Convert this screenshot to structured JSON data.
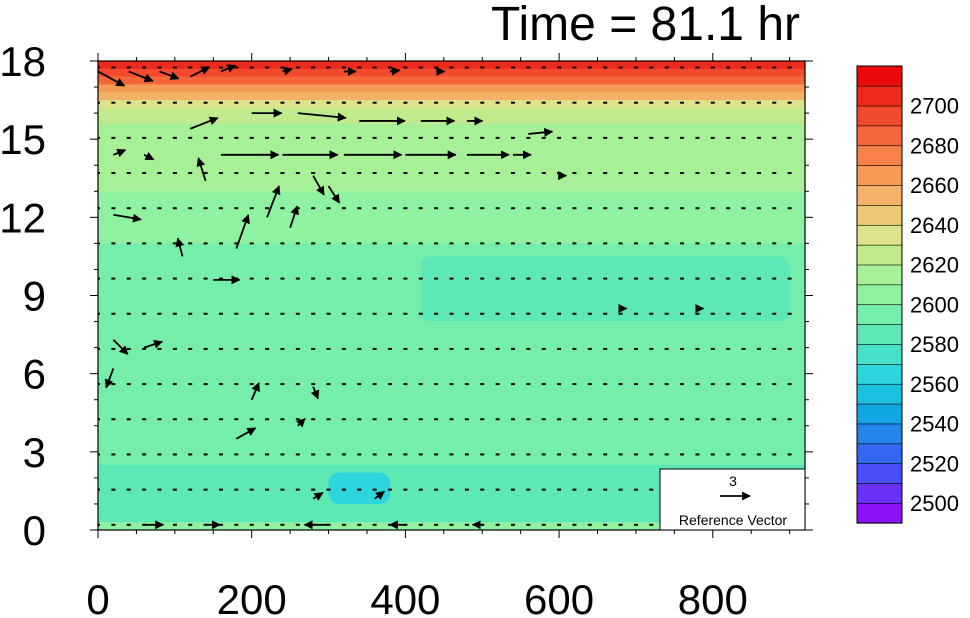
{
  "chart_data": {
    "type": "heatmap",
    "title": "Time = 81.1 hr",
    "xlabel": "",
    "ylabel": "",
    "xlim": [
      0,
      920
    ],
    "ylim": [
      0,
      18
    ],
    "x_ticks": [
      "0",
      "200",
      "400",
      "600",
      "800"
    ],
    "x_tick_values": [
      0,
      200,
      400,
      600,
      800
    ],
    "y_ticks": [
      "0",
      "3",
      "6",
      "9",
      "12",
      "15",
      "18"
    ],
    "y_tick_values": [
      0,
      3,
      6,
      9,
      12,
      15,
      18
    ],
    "colorbar": {
      "labels": [
        "2500",
        "2520",
        "2540",
        "2560",
        "2580",
        "2600",
        "2620",
        "2640",
        "2660",
        "2680",
        "2700"
      ],
      "levels": [
        2490,
        2500,
        2510,
        2520,
        2530,
        2540,
        2550,
        2560,
        2570,
        2580,
        2590,
        2600,
        2610,
        2620,
        2630,
        2640,
        2650,
        2660,
        2670,
        2680,
        2690,
        2700,
        2710
      ],
      "colors": [
        "#8c12f5",
        "#6a30f7",
        "#4a4ff8",
        "#3468f0",
        "#2486ea",
        "#13a6e5",
        "#1dbfe0",
        "#2fd5dc",
        "#45e1c9",
        "#5ee8b5",
        "#76eeab",
        "#8ff2a0",
        "#a8f097",
        "#c1ea8d",
        "#dde38a",
        "#ecc877",
        "#f4b268",
        "#f89a57",
        "#f78149",
        "#f5673b",
        "#f24a2c",
        "#ee2a1c",
        "#ea0a0c"
      ]
    },
    "field_bands": [
      {
        "y_top": 18.0,
        "value": 2705
      },
      {
        "y_top": 17.7,
        "value": 2695
      },
      {
        "y_top": 17.4,
        "value": 2682
      },
      {
        "y_top": 17.1,
        "value": 2668
      },
      {
        "y_top": 16.8,
        "value": 2652
      },
      {
        "y_top": 16.5,
        "value": 2638
      },
      {
        "y_top": 16.2,
        "value": 2625
      },
      {
        "y_top": 15.6,
        "value": 2613
      },
      {
        "y_top": 13.0,
        "value": 2603
      },
      {
        "y_top": 11.0,
        "value": 2593
      },
      {
        "y_top": 2.5,
        "value": 2584
      },
      {
        "y_top": 0.3,
        "value": 2605
      }
    ],
    "field_patches": [
      {
        "x": [
          300,
          380
        ],
        "y": [
          1.0,
          2.2
        ],
        "value": 2565
      },
      {
        "x": [
          420,
          900
        ],
        "y": [
          8.0,
          10.5
        ],
        "value": 2588
      }
    ],
    "vectors": [
      {
        "x": 0,
        "y": 17.6,
        "u": 2.2,
        "v": -1.2
      },
      {
        "x": 40,
        "y": 17.6,
        "u": 2.0,
        "v": -0.8
      },
      {
        "x": 80,
        "y": 17.6,
        "u": 1.6,
        "v": -0.6
      },
      {
        "x": 120,
        "y": 17.4,
        "u": 1.6,
        "v": 0.8
      },
      {
        "x": 160,
        "y": 17.6,
        "u": 1.2,
        "v": 0.5
      },
      {
        "x": 240,
        "y": 17.6,
        "u": 0.8,
        "v": 0.2
      },
      {
        "x": 320,
        "y": 17.6,
        "u": 1.0,
        "v": 0.0
      },
      {
        "x": 380,
        "y": 17.6,
        "u": 0.8,
        "v": 0.1
      },
      {
        "x": 440,
        "y": 17.6,
        "u": 0.7,
        "v": 0.0
      },
      {
        "x": 120,
        "y": 15.4,
        "u": 2.3,
        "v": 0.9
      },
      {
        "x": 200,
        "y": 16.0,
        "u": 2.5,
        "v": 0.0
      },
      {
        "x": 260,
        "y": 16.0,
        "u": 4.0,
        "v": -0.4
      },
      {
        "x": 340,
        "y": 15.7,
        "u": 3.8,
        "v": 0.0
      },
      {
        "x": 420,
        "y": 15.7,
        "u": 2.8,
        "v": 0.0
      },
      {
        "x": 480,
        "y": 15.7,
        "u": 1.3,
        "v": 0.0
      },
      {
        "x": 560,
        "y": 15.2,
        "u": 2.0,
        "v": 0.2
      },
      {
        "x": 160,
        "y": 14.4,
        "u": 4.8,
        "v": 0.0
      },
      {
        "x": 240,
        "y": 14.4,
        "u": 4.6,
        "v": 0.0
      },
      {
        "x": 320,
        "y": 14.4,
        "u": 4.8,
        "v": 0.0
      },
      {
        "x": 400,
        "y": 14.4,
        "u": 4.2,
        "v": 0.0
      },
      {
        "x": 480,
        "y": 14.4,
        "u": 3.5,
        "v": 0.0
      },
      {
        "x": 540,
        "y": 14.4,
        "u": 1.5,
        "v": 0.0
      },
      {
        "x": 20,
        "y": 14.4,
        "u": 1.0,
        "v": 0.4
      },
      {
        "x": 60,
        "y": 14.4,
        "u": 0.8,
        "v": -0.4
      },
      {
        "x": 280,
        "y": 13.6,
        "u": 0.9,
        "v": -1.6
      },
      {
        "x": 300,
        "y": 13.2,
        "u": 0.9,
        "v": -1.4
      },
      {
        "x": 20,
        "y": 12.1,
        "u": 2.3,
        "v": -0.4
      },
      {
        "x": 180,
        "y": 10.8,
        "u": 1.0,
        "v": 2.8
      },
      {
        "x": 220,
        "y": 12.0,
        "u": 1.0,
        "v": 2.6
      },
      {
        "x": 250,
        "y": 11.6,
        "u": 0.6,
        "v": 1.8
      },
      {
        "x": 140,
        "y": 13.4,
        "u": -0.6,
        "v": 1.9
      },
      {
        "x": 110,
        "y": 10.5,
        "u": -0.4,
        "v": 1.5
      },
      {
        "x": 150,
        "y": 9.6,
        "u": 2.2,
        "v": 0.0
      },
      {
        "x": 20,
        "y": 7.3,
        "u": 1.2,
        "v": -1.2
      },
      {
        "x": 60,
        "y": 7.0,
        "u": 1.5,
        "v": 0.5
      },
      {
        "x": 20,
        "y": 6.2,
        "u": -0.6,
        "v": -1.6
      },
      {
        "x": 200,
        "y": 5.0,
        "u": 0.6,
        "v": 1.4
      },
      {
        "x": 280,
        "y": 5.5,
        "u": 0.4,
        "v": -1.0
      },
      {
        "x": 180,
        "y": 3.5,
        "u": 1.6,
        "v": 0.9
      },
      {
        "x": 260,
        "y": 4.0,
        "u": 0.6,
        "v": 0.6
      },
      {
        "x": 60,
        "y": 0.2,
        "u": 1.6,
        "v": 0.0
      },
      {
        "x": 140,
        "y": 0.2,
        "u": 1.2,
        "v": 0.0
      },
      {
        "x": 300,
        "y": 0.2,
        "u": -2.0,
        "v": 0.0
      },
      {
        "x": 400,
        "y": 0.2,
        "u": -1.3,
        "v": 0.0
      },
      {
        "x": 500,
        "y": 0.2,
        "u": -0.8,
        "v": 0.0
      },
      {
        "x": 280,
        "y": 1.2,
        "u": 0.8,
        "v": 0.5
      },
      {
        "x": 360,
        "y": 1.2,
        "u": 0.8,
        "v": 0.6
      },
      {
        "x": 600,
        "y": 13.6,
        "u": 0.6,
        "v": 0.0
      },
      {
        "x": 680,
        "y": 8.5,
        "u": 0.5,
        "v": 0.0
      },
      {
        "x": 780,
        "y": 8.5,
        "u": 0.5,
        "v": 0.0
      }
    ],
    "reference_vector": {
      "magnitude": "3",
      "label": "Reference Vector"
    }
  }
}
